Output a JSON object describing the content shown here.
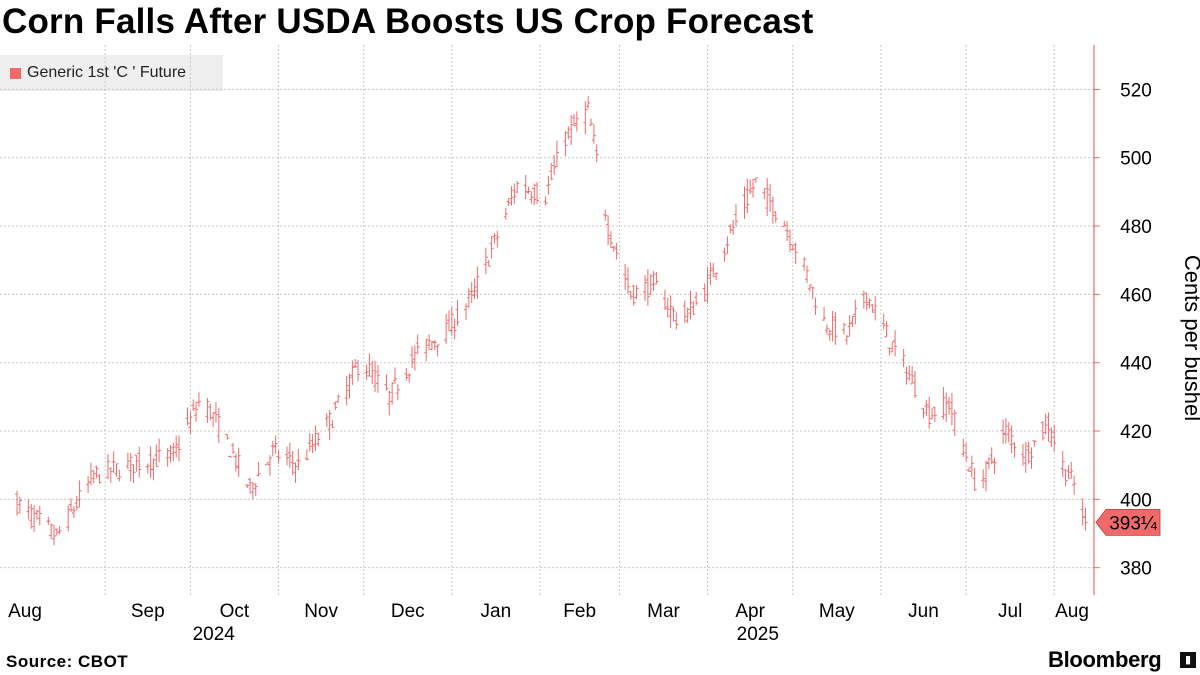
{
  "header": {
    "title": "Corn Falls After USDA Boosts US Crop Forecast"
  },
  "legend": {
    "label": "Generic 1st 'C ' Future"
  },
  "footer": {
    "source": "Source: CBOT",
    "brand": "Bloomberg"
  },
  "colors": {
    "series": "#f06a6a",
    "grid": "#c8c8c8",
    "axis": "#f06a6a"
  },
  "icons": {
    "brand_icon": "bloomberg-chart-icon"
  },
  "chart_data": {
    "type": "line",
    "subtype": "ohlc",
    "title": "Corn Falls After USDA Boosts US Crop Forecast",
    "ylabel": "Cents per bushel",
    "ylim": [
      372,
      533
    ],
    "yticks": [
      380,
      400,
      420,
      440,
      460,
      480,
      500,
      520
    ],
    "y_axis_side": "right",
    "grid": true,
    "legend_position": "top-left",
    "last_value_label": "393¼",
    "last_value": 393.25,
    "x_month_labels": [
      "Aug",
      "Sep",
      "Oct",
      "Nov",
      "Dec",
      "Jan",
      "Feb",
      "Mar",
      "Apr",
      "May",
      "Jun",
      "Jul",
      "Aug"
    ],
    "x_year_labels": [
      "2024",
      "2025"
    ],
    "series": [
      {
        "name": "Generic 1st 'C ' Future",
        "x": [
          "2024-08-01",
          "2024-08-15",
          "2024-08-28",
          "2024-09-10",
          "2024-09-25",
          "2024-10-05",
          "2024-10-12",
          "2024-10-22",
          "2024-10-30",
          "2024-11-08",
          "2024-11-20",
          "2024-11-30",
          "2024-12-10",
          "2024-12-20",
          "2024-12-31",
          "2025-01-08",
          "2025-01-17",
          "2025-01-24",
          "2025-02-03",
          "2025-02-10",
          "2025-02-18",
          "2025-02-25",
          "2025-03-05",
          "2025-03-13",
          "2025-03-22",
          "2025-03-30",
          "2025-04-08",
          "2025-04-18",
          "2025-04-28",
          "2025-05-05",
          "2025-05-12",
          "2025-05-20",
          "2025-05-27",
          "2025-06-05",
          "2025-06-10",
          "2025-06-18",
          "2025-06-25",
          "2025-07-05",
          "2025-07-15",
          "2025-07-22",
          "2025-07-30",
          "2025-08-04",
          "2025-08-08",
          "2025-08-12"
        ],
        "values": [
          399,
          389,
          407,
          410,
          413,
          430,
          420,
          403,
          414,
          410,
          424,
          441,
          430,
          443,
          450,
          459,
          477,
          492,
          489,
          506,
          514,
          480,
          460,
          463,
          452,
          459,
          476,
          493,
          481,
          468,
          452,
          448,
          460,
          445,
          438,
          425,
          428,
          403,
          420,
          413,
          422,
          410,
          404,
          393.25
        ]
      }
    ]
  }
}
